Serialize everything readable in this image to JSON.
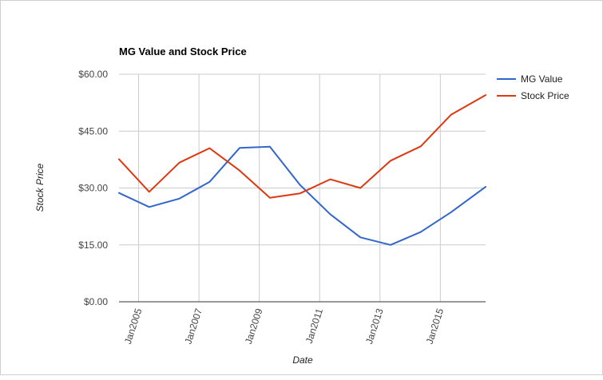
{
  "chart_data": {
    "type": "line",
    "title": "MG Value and Stock Price",
    "xlabel": "Date",
    "ylabel": "Stock Price",
    "x_tick_labels": [
      "Jan2005",
      "Jan2007",
      "Jan2009",
      "Jan2011",
      "Jan2013",
      "Jan2015"
    ],
    "x_tick_years": [
      2005,
      2007,
      2009,
      2011,
      2013,
      2015
    ],
    "xlim": [
      2004.35,
      2016.5
    ],
    "y_ticks": [
      0,
      15,
      30,
      45,
      60
    ],
    "y_tick_labels": [
      "$0.00",
      "$15.00",
      "$30.00",
      "$45.00",
      "$60.00"
    ],
    "ylim": [
      0,
      60
    ],
    "grid": true,
    "legend_position": "right",
    "series": [
      {
        "name": "MG Value",
        "color": "#3366cc",
        "x": [
          2004.35,
          2005.35,
          2006.35,
          2007.35,
          2008.35,
          2009.35,
          2010.35,
          2011.35,
          2012.35,
          2013.35,
          2014.35,
          2015.35,
          2016.5
        ],
        "values": [
          28.7,
          25.0,
          27.2,
          31.6,
          40.6,
          40.9,
          30.8,
          23.1,
          17.0,
          15.0,
          18.4,
          23.6,
          30.3
        ]
      },
      {
        "name": "Stock Price",
        "color": "#dc3912",
        "x": [
          2004.35,
          2005.35,
          2006.35,
          2007.35,
          2008.35,
          2009.35,
          2010.35,
          2011.35,
          2012.35,
          2013.35,
          2014.35,
          2015.35,
          2016.5
        ],
        "values": [
          37.6,
          29.0,
          36.7,
          40.5,
          34.6,
          27.4,
          28.6,
          32.3,
          30.0,
          37.2,
          41.0,
          49.3,
          54.5
        ]
      }
    ]
  }
}
